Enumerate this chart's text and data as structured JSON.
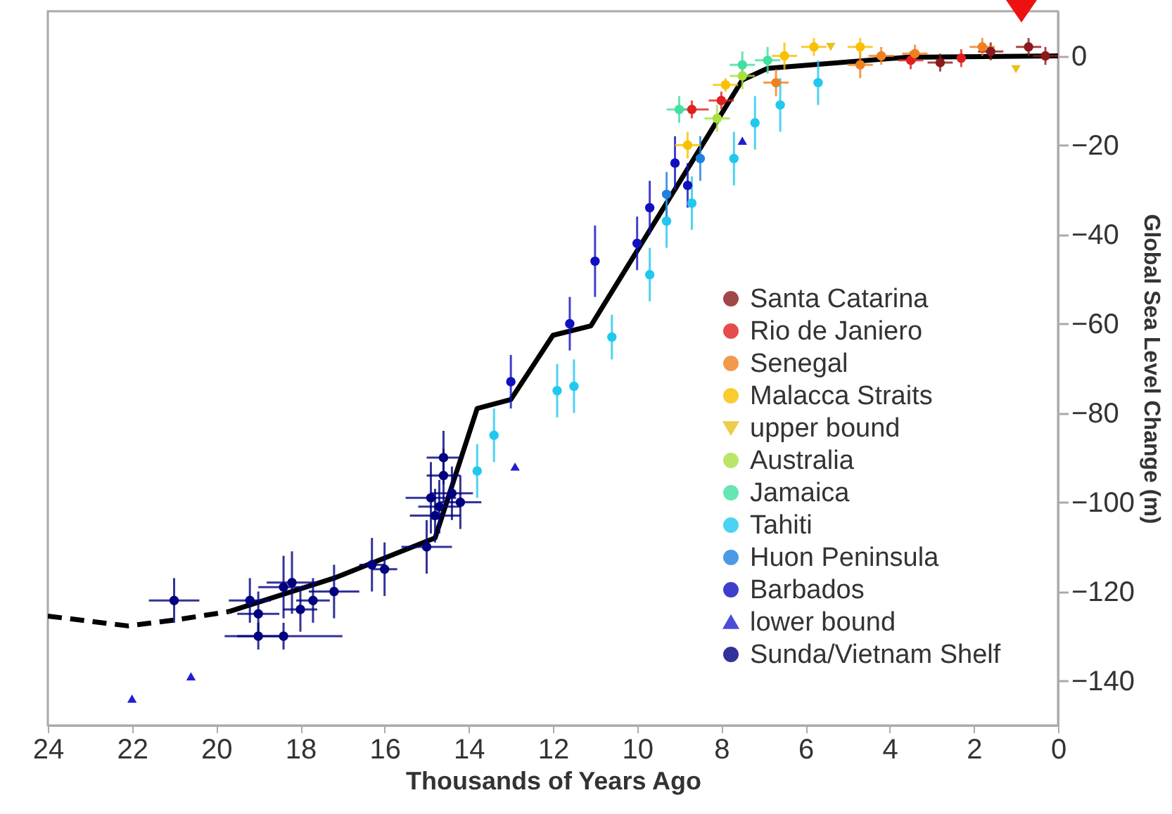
{
  "chart_data": {
    "type": "scatter",
    "xlabel": "Thousands of Years Ago",
    "ylabel": "Global Sea Level Change (m)",
    "xlim": [
      24,
      0
    ],
    "ylim": [
      -150,
      10
    ],
    "xticks": [
      24,
      22,
      20,
      18,
      16,
      14,
      12,
      10,
      8,
      6,
      4,
      2,
      0
    ],
    "yticks": [
      -140,
      -120,
      -100,
      -80,
      -60,
      -40,
      -20,
      0
    ],
    "grid": false,
    "legend": "bottom right",
    "series": [
      {
        "name": "Santa Catarina",
        "color": "#8b1a1a",
        "marker": "circle",
        "x": [
          0.7,
          1.6,
          2.8,
          0.3
        ],
        "values": [
          2,
          1,
          -1.5,
          0
        ],
        "errors": [
          2,
          2,
          2,
          2
        ],
        "xerrors": [
          0.3,
          0.3,
          0.3,
          0.3
        ]
      },
      {
        "name": "Rio de Janiero",
        "color": "#e02020",
        "marker": "circle",
        "x": [
          8.7,
          8.0,
          3.5,
          2.3
        ],
        "values": [
          -12,
          -10,
          -1,
          -0.5
        ],
        "errors": [
          2,
          2,
          2,
          2
        ],
        "xerrors": [
          0.4,
          0.3,
          0.3,
          null
        ]
      },
      {
        "name": "Senegal",
        "color": "#f08020",
        "marker": "circle",
        "x": [
          6.7,
          4.7,
          4.2,
          1.8,
          3.4
        ],
        "values": [
          -6,
          -2,
          0,
          2,
          0.5
        ],
        "errors": [
          3,
          3,
          2,
          2,
          2
        ],
        "xerrors": [
          0.3,
          0.3,
          0.3,
          0.3,
          0.3
        ]
      },
      {
        "name": "Malacca Straits",
        "color": "#f8c000",
        "marker": "circle",
        "x": [
          8.8,
          7.9,
          6.5,
          5.8,
          4.7
        ],
        "values": [
          -20,
          -6.5,
          0,
          2,
          2
        ],
        "errors": [
          3,
          1.5,
          3,
          2,
          2
        ],
        "xerrors": [
          0.3,
          0.3,
          0.3,
          0.3,
          0.3
        ]
      },
      {
        "name": "upper bound",
        "color": "#e8c020",
        "marker": "triangle-down",
        "x": [
          5.4,
          1.0
        ],
        "values": [
          2,
          -3
        ]
      },
      {
        "name": "Australia",
        "color": "#a8e040",
        "marker": "circle",
        "x": [
          8.1,
          7.5
        ],
        "values": [
          -14,
          -4.5
        ],
        "errors": [
          3,
          3
        ],
        "xerrors": [
          0.3,
          0.3
        ]
      },
      {
        "name": "Jamaica",
        "color": "#40e0a0",
        "marker": "circle",
        "x": [
          9.0,
          7.5,
          6.9
        ],
        "values": [
          -12,
          -2,
          -1
        ],
        "errors": [
          3,
          3,
          3
        ],
        "xerrors": [
          0.3,
          0.3,
          0.3
        ]
      },
      {
        "name": "Tahiti",
        "color": "#20c8f0",
        "marker": "circle",
        "x": [
          13.8,
          13.4,
          11.9,
          11.5,
          10.6,
          9.7,
          9.3,
          8.7,
          7.7,
          7.2,
          6.6,
          5.7
        ],
        "values": [
          -93,
          -85,
          -75,
          -74,
          -63,
          -49,
          -37,
          -33,
          -23,
          -15,
          -11,
          -6
        ],
        "errors": [
          6,
          6,
          6,
          6,
          5,
          6,
          6,
          6,
          6,
          6,
          6,
          5
        ]
      },
      {
        "name": "Huon Peninsula",
        "color": "#2080e0",
        "marker": "circle",
        "x": [
          9.3,
          8.5
        ],
        "values": [
          -31,
          -23
        ],
        "errors": [
          5,
          5
        ]
      },
      {
        "name": "Barbados",
        "color": "#1010c0",
        "marker": "circle",
        "x": [
          13.0,
          11.6,
          11.0,
          10.0,
          9.7,
          9.1,
          8.8
        ],
        "values": [
          -73,
          -60,
          -46,
          -42,
          -34,
          -24,
          -29
        ],
        "errors": [
          6,
          6,
          8,
          6,
          6,
          6,
          5
        ]
      },
      {
        "name": "lower bound",
        "color": "#2020d0",
        "marker": "triangle",
        "x": [
          22.0,
          20.6,
          12.9,
          7.5
        ],
        "values": [
          -144,
          -139,
          -92,
          -19
        ]
      },
      {
        "name": "Sunda/Vietnam Shelf",
        "color": "#000080",
        "marker": "circle",
        "x": [
          21.0,
          19.2,
          19.0,
          19.0,
          18.4,
          18.4,
          18.2,
          18.0,
          17.7,
          17.2,
          16.3,
          16.0,
          15.0,
          14.9,
          14.8,
          14.7,
          14.6,
          14.6,
          14.4,
          14.2
        ],
        "values": [
          -122,
          -122,
          -125,
          -130,
          -130,
          -119,
          -118,
          -124,
          -122,
          -120,
          -114,
          -115,
          -110,
          -99,
          -103,
          -101,
          -90,
          -94,
          -98,
          -100
        ],
        "errors": [
          5,
          5,
          5,
          3,
          3,
          7,
          7,
          5,
          5,
          6,
          6,
          6,
          6,
          8,
          6,
          6,
          6,
          6,
          6,
          6
        ],
        "xerrors": [
          0.6,
          0.5,
          0.5,
          0.5,
          1.4,
          0.6,
          0.6,
          0.4,
          0.4,
          0.6,
          0.3,
          0.3,
          0.6,
          0.6,
          0.6,
          0.5,
          0.4,
          0.4,
          0.5,
          0.5
        ]
      },
      {
        "type": "line",
        "color": "#000000",
        "line_style": "solid",
        "x": [
          19.7,
          17.2,
          14.8,
          13.8,
          13.0,
          12.0,
          11.1,
          7.5,
          6.9,
          3.6,
          0
        ],
        "values": [
          -124.5,
          -117,
          -108,
          -79,
          -77,
          -62.6,
          -60.5,
          -5.4,
          -2.8,
          -0.3,
          0
        ]
      },
      {
        "type": "line",
        "color": "#000000",
        "line_style": "dashed",
        "x": [
          24,
          22.1,
          21.0,
          19.7
        ],
        "values": [
          -125.5,
          -127.7,
          -126.4,
          -124.5
        ]
      }
    ]
  }
}
